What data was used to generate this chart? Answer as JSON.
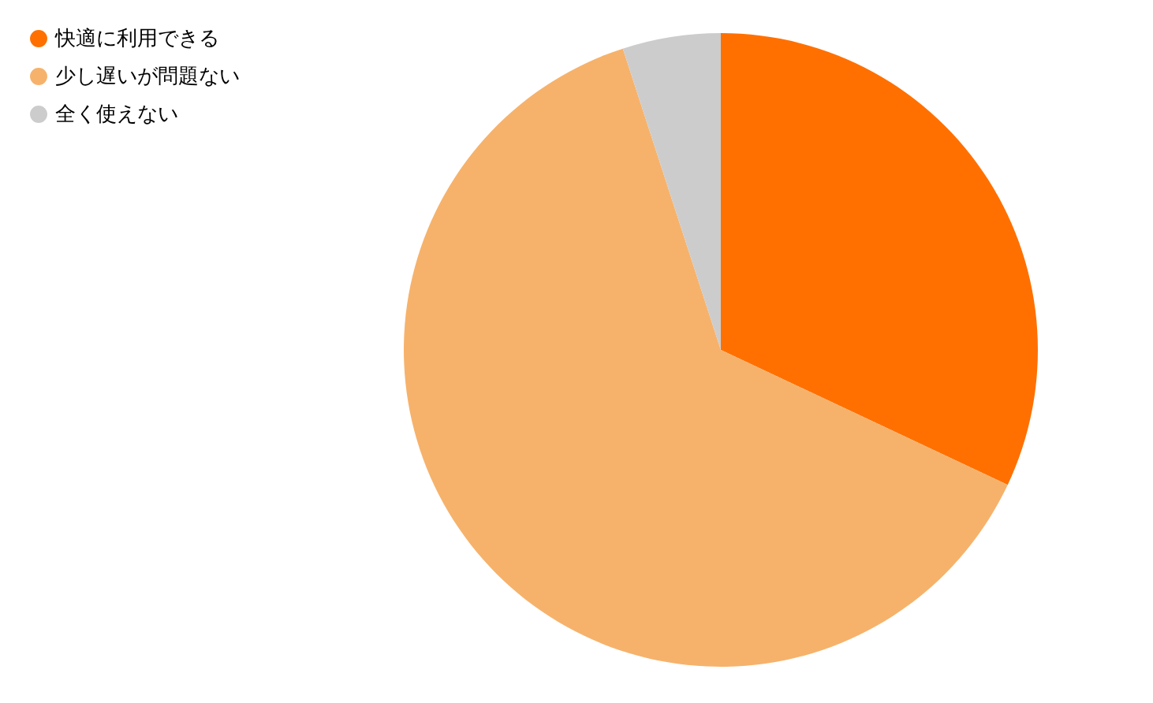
{
  "chart_data": {
    "type": "pie",
    "categories": [
      "快適に利用できる",
      "少し遅いが問題ない",
      "全く使えない"
    ],
    "values": [
      32,
      63,
      5
    ],
    "colors": [
      "#ff7000",
      "#f6b26b",
      "#cccccc"
    ],
    "legend": "top left"
  }
}
